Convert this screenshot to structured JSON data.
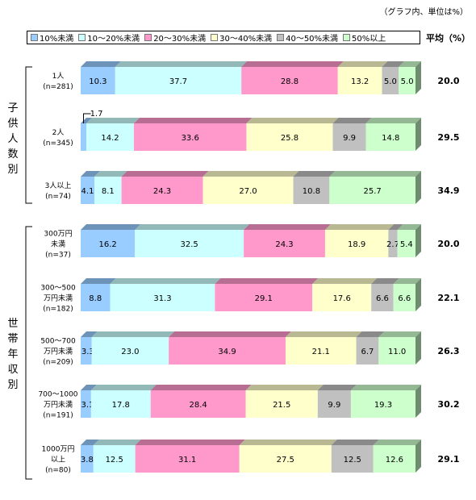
{
  "unit_note": "（グラフ内、単位は%）",
  "avg_header": "平均（%）",
  "colors": [
    "#99ccff",
    "#ccffff",
    "#ff99cc",
    "#ffffcc",
    "#c0c0c0",
    "#ccffcc"
  ],
  "chart_data": {
    "type": "bar",
    "stacked": true,
    "orientation": "horizontal",
    "legend_position": "top",
    "series_names": [
      "10%未満",
      "10～20%未満",
      "20～30%未満",
      "30～40%未満",
      "40～50%未満",
      "50%以上"
    ],
    "groups": [
      {
        "label": "子供人数別",
        "rows": [
          {
            "label": [
              "1人",
              "(n=281)"
            ],
            "values": [
              10.3,
              37.7,
              28.8,
              13.2,
              5.0,
              5.0
            ],
            "average": "20.0"
          },
          {
            "label": [
              "2人",
              "(n=345)"
            ],
            "values": [
              1.7,
              14.2,
              33.6,
              25.8,
              9.9,
              14.8
            ],
            "average": "29.5"
          },
          {
            "label": [
              "3人以上",
              "(n=74)"
            ],
            "values": [
              4.1,
              8.1,
              24.3,
              27.0,
              10.8,
              25.7
            ],
            "average": "34.9"
          }
        ]
      },
      {
        "label": "世帯年収別",
        "rows": [
          {
            "label": [
              "300万円",
              "未満",
              "(n=37)"
            ],
            "values": [
              16.2,
              32.5,
              24.3,
              18.9,
              2.7,
              5.4
            ],
            "average": "20.0"
          },
          {
            "label": [
              "300～500",
              "万円未満",
              "(n=182)"
            ],
            "values": [
              8.8,
              31.3,
              29.1,
              17.6,
              6.6,
              6.6
            ],
            "average": "22.1"
          },
          {
            "label": [
              "500～700",
              "万円未満",
              "(n=209)"
            ],
            "values": [
              3.3,
              23.0,
              34.9,
              21.1,
              6.7,
              11.0
            ],
            "average": "26.3"
          },
          {
            "label": [
              "700～1000",
              "万円未満",
              "(n=191)"
            ],
            "values": [
              3.1,
              17.8,
              28.4,
              21.5,
              9.9,
              19.3
            ],
            "average": "30.2"
          },
          {
            "label": [
              "1000万円",
              "以上",
              "(n=80)"
            ],
            "values": [
              3.8,
              12.5,
              31.1,
              27.5,
              12.5,
              12.6
            ],
            "average": "29.1"
          }
        ]
      }
    ]
  }
}
